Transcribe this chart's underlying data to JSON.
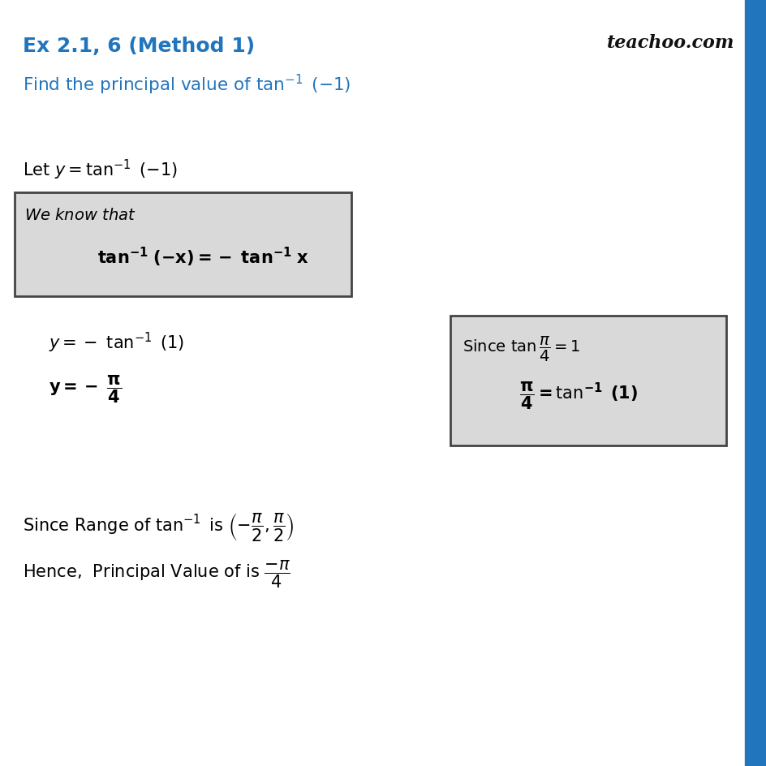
{
  "bg_color": "#ffffff",
  "title": "Ex 2.1, 6 (Method 1)",
  "title_color": "#2175BD",
  "right_bar_color": "#2175BD",
  "box_bg": "#d9d9d9",
  "box_edge": "#444444",
  "text_color": "#000000",
  "watermark_color": "#111111"
}
